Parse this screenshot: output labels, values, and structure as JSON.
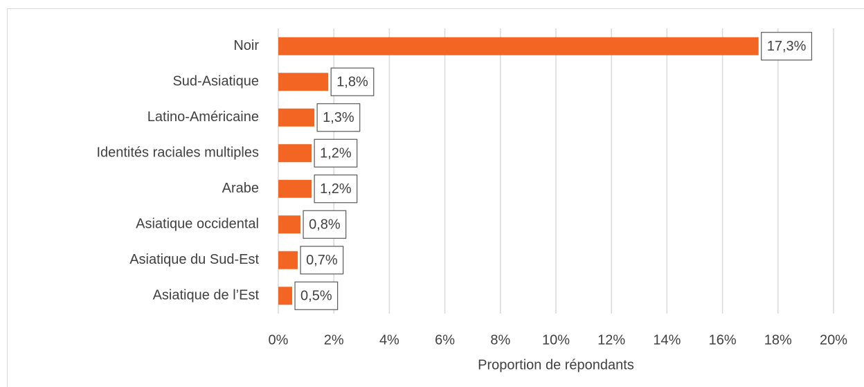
{
  "chart_data": {
    "type": "bar",
    "orientation": "horizontal",
    "x_label": "Proportion de répondants",
    "categories": [
      "Noir",
      "Sud-Asiatique",
      "Latino-Américaine",
      "Identités raciales multiples",
      "Arabe",
      "Asiatique occidental",
      "Asiatique du Sud-Est",
      "Asiatique de l’Est"
    ],
    "values": [
      17.3,
      1.8,
      1.3,
      1.2,
      1.2,
      0.8,
      0.7,
      0.5
    ],
    "value_labels": [
      "17,3%",
      "1,8%",
      "1,3%",
      "1,2%",
      "1,2%",
      "0,8%",
      "0,7%",
      "0,5%"
    ],
    "color": "#f26522",
    "xlim": [
      0,
      20
    ],
    "xticks": [
      {
        "value": 0,
        "label": "0%"
      },
      {
        "value": 2,
        "label": "2%"
      },
      {
        "value": 4,
        "label": "4%"
      },
      {
        "value": 6,
        "label": "6%"
      },
      {
        "value": 8,
        "label": "8%"
      },
      {
        "value": 10,
        "label": "10%"
      },
      {
        "value": 12,
        "label": "12%"
      },
      {
        "value": 14,
        "label": "14%"
      },
      {
        "value": 16,
        "label": "16%"
      },
      {
        "value": 18,
        "label": "18%"
      },
      {
        "value": 20,
        "label": "20%"
      }
    ],
    "grid": true
  }
}
